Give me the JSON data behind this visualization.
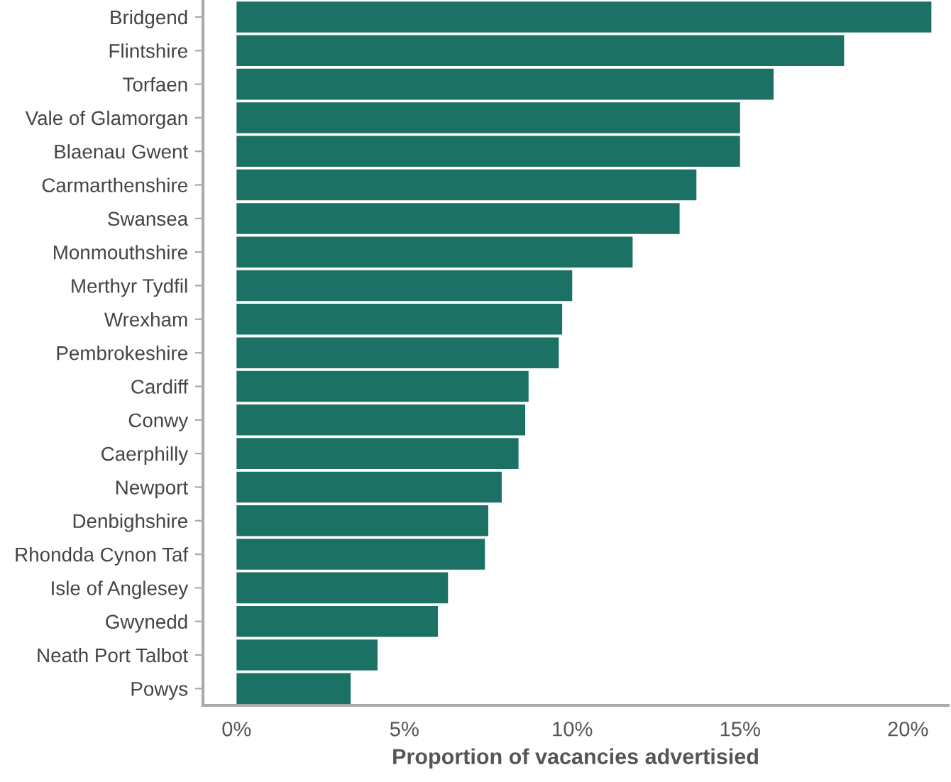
{
  "chart_data": {
    "type": "bar",
    "orientation": "horizontal",
    "xlabel": "Proportion of vacancies advertisied",
    "categories": [
      "Bridgend",
      "Flintshire",
      "Torfaen",
      "Vale of Glamorgan",
      "Blaenau Gwent",
      "Carmarthenshire",
      "Swansea",
      "Monmouthshire",
      "Merthyr Tydfil",
      "Wrexham",
      "Pembrokeshire",
      "Cardiff",
      "Conwy",
      "Caerphilly",
      "Newport",
      "Denbighshire",
      "Rhondda Cynon Taf",
      "Isle of Anglesey",
      "Gwynedd",
      "Neath Port Talbot",
      "Powys"
    ],
    "values": [
      20.7,
      18.1,
      16.0,
      15.0,
      15.0,
      13.7,
      13.2,
      11.8,
      10.0,
      9.7,
      9.6,
      8.7,
      8.6,
      8.4,
      7.9,
      7.5,
      7.4,
      6.3,
      6.0,
      4.2,
      3.4
    ],
    "color": "#1b7264",
    "xlim": [
      -1.0,
      21.2
    ],
    "xticks": [
      {
        "value": 0,
        "label": "0%"
      },
      {
        "value": 5,
        "label": "5%"
      },
      {
        "value": 10,
        "label": "10%"
      },
      {
        "value": 15,
        "label": "15%"
      },
      {
        "value": 20,
        "label": "20%"
      }
    ],
    "grid": false,
    "legend": false
  }
}
